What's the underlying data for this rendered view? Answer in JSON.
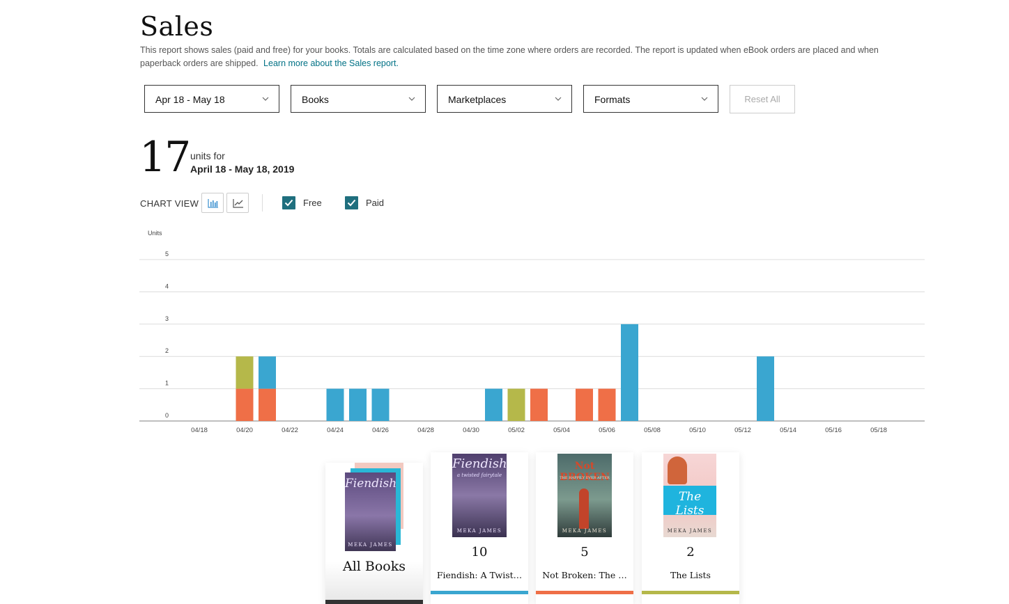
{
  "page": {
    "title": "Sales",
    "description": "This report shows sales (paid and free) for your books. Totals are calculated based on the time zone where orders are recorded. The report is updated when eBook orders are placed and when paperback orders are shipped.",
    "learn_more": "Learn more about the Sales report."
  },
  "filters": {
    "date": "Apr 18 - May 18",
    "books": "Books",
    "marketplaces": "Marketplaces",
    "formats": "Formats",
    "reset": "Reset All"
  },
  "summary": {
    "total": "17",
    "units_for": "units for",
    "range": "April 18 - May 18, 2019"
  },
  "chart_controls": {
    "label": "CHART VIEW",
    "free_label": "Free",
    "paid_label": "Paid",
    "free_checked": true,
    "paid_checked": true
  },
  "colors": {
    "fiendish": "#3aa6d0",
    "not_broken": "#ef6f47",
    "the_lists": "#b5b84a",
    "checkbox": "#1f6f7e",
    "link": "#007185"
  },
  "chart_data": {
    "type": "bar",
    "stacked": true,
    "ylabel": "Units",
    "ylim": [
      0,
      5
    ],
    "yticks": [
      0,
      1,
      2,
      3,
      4,
      5
    ],
    "grid": true,
    "x": [
      "04/18",
      "04/19",
      "04/20",
      "04/21",
      "04/22",
      "04/23",
      "04/24",
      "04/25",
      "04/26",
      "04/27",
      "04/28",
      "04/29",
      "04/30",
      "05/01",
      "05/02",
      "05/03",
      "05/04",
      "05/05",
      "05/06",
      "05/07",
      "05/08",
      "05/09",
      "05/10",
      "05/11",
      "05/12",
      "05/13",
      "05/14",
      "05/15",
      "05/16",
      "05/17",
      "05/18"
    ],
    "xtick_labels": [
      "04/18",
      "04/20",
      "04/22",
      "04/24",
      "04/26",
      "04/28",
      "04/30",
      "05/02",
      "05/04",
      "05/06",
      "05/08",
      "05/10",
      "05/12",
      "05/14",
      "05/16",
      "05/18"
    ],
    "series": [
      {
        "name": "Fiendish: A Twist…",
        "color": "#3aa6d0",
        "values": [
          0,
          0,
          0,
          1,
          0,
          0,
          1,
          1,
          1,
          0,
          0,
          0,
          0,
          1,
          0,
          0,
          0,
          0,
          0,
          3,
          0,
          0,
          0,
          0,
          0,
          2,
          0,
          0,
          0,
          0,
          0
        ]
      },
      {
        "name": "Not Broken: The …",
        "color": "#ef6f47",
        "values": [
          0,
          0,
          1,
          1,
          0,
          0,
          0,
          0,
          0,
          0,
          0,
          0,
          0,
          0,
          0,
          1,
          0,
          1,
          1,
          0,
          0,
          0,
          0,
          0,
          0,
          0,
          0,
          0,
          0,
          0,
          0
        ]
      },
      {
        "name": "The Lists",
        "color": "#b5b84a",
        "values": [
          0,
          0,
          1,
          0,
          0,
          0,
          0,
          0,
          0,
          0,
          0,
          0,
          0,
          0,
          1,
          0,
          0,
          0,
          0,
          0,
          0,
          0,
          0,
          0,
          0,
          0,
          0,
          0,
          0,
          0,
          0
        ]
      }
    ]
  },
  "books": {
    "all_label": "All Books",
    "items": [
      {
        "count": "10",
        "name": "Fiendish: A Twist…",
        "color": "#3aa6d0",
        "cover_title": "Fiendish",
        "cover_sub": "a twisted fairytale",
        "author": "MEKA JAMES"
      },
      {
        "count": "5",
        "name": "Not Broken: The …",
        "color": "#ef6f47",
        "cover_title": "Not BROKEN",
        "cover_sub": "THE HAPPILY EVER AFTER",
        "author": "MEKA JAMES"
      },
      {
        "count": "2",
        "name": "The Lists",
        "color": "#b5b84a",
        "cover_title": "The Lists",
        "cover_sub": "",
        "author": "MEKA JAMES"
      }
    ]
  }
}
